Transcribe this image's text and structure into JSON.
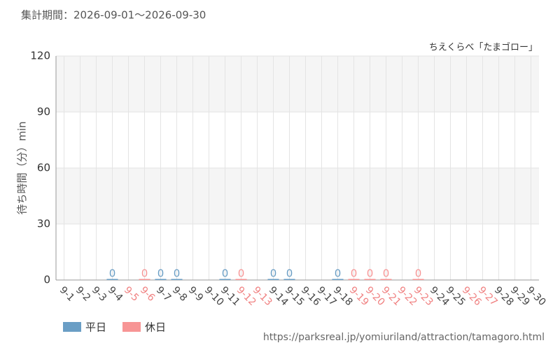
{
  "chart_data": {
    "type": "bar",
    "title": "集計期間：2026-09-01～2026-09-30",
    "subtitle": "ちえくらべ「たまゴロー」",
    "y_label": "待ち時間（分）min",
    "source": "https://parksreal.jp/yomiuriland/attraction/tamagoro.html",
    "categories": [
      "9-1",
      "9-2",
      "9-3",
      "9-4",
      "9-5",
      "9-6",
      "9-7",
      "9-8",
      "9-9",
      "9-10",
      "9-11",
      "9-12",
      "9-13",
      "9-14",
      "9-15",
      "9-16",
      "9-17",
      "9-18",
      "9-19",
      "9-20",
      "9-21",
      "9-22",
      "9-23",
      "9-24",
      "9-25",
      "9-26",
      "9-27",
      "9-28",
      "9-29",
      "9-30"
    ],
    "category_colors": [
      "#444",
      "#444",
      "#444",
      "#444",
      "#f08080",
      "#f08080",
      "#444",
      "#444",
      "#444",
      "#444",
      "#444",
      "#f08080",
      "#f08080",
      "#444",
      "#444",
      "#444",
      "#444",
      "#444",
      "#f08080",
      "#f08080",
      "#f08080",
      "#f08080",
      "#f08080",
      "#444",
      "#444",
      "#f08080",
      "#f08080",
      "#444",
      "#444",
      "#444"
    ],
    "series": [
      {
        "name": "平日",
        "color": "#6a9ec5",
        "values": [
          null,
          null,
          null,
          0,
          null,
          null,
          0,
          0,
          null,
          null,
          0,
          null,
          null,
          0,
          0,
          null,
          null,
          0,
          null,
          null,
          null,
          null,
          null,
          null,
          null,
          null,
          null,
          null,
          null,
          null
        ]
      },
      {
        "name": "休日",
        "color": "#f79595",
        "values": [
          null,
          null,
          null,
          null,
          null,
          0,
          null,
          null,
          null,
          null,
          null,
          0,
          null,
          null,
          null,
          null,
          null,
          null,
          0,
          0,
          0,
          null,
          0,
          null,
          null,
          null,
          null,
          null,
          null,
          null
        ]
      }
    ],
    "ylim": [
      0,
      120
    ],
    "yticks": [
      0,
      30,
      60,
      90,
      120
    ],
    "grid": true
  }
}
